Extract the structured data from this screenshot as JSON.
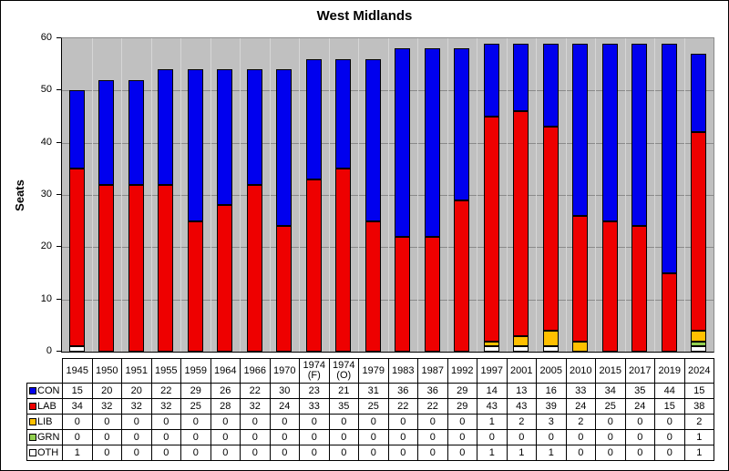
{
  "title": "West Midlands",
  "chart_data": {
    "type": "bar",
    "stacked": true,
    "title": "West Midlands",
    "xlabel": "",
    "ylabel": "Seats",
    "ylim": [
      0,
      60
    ],
    "yticks": [
      0,
      10,
      20,
      30,
      40,
      50,
      60
    ],
    "grid": true,
    "legend_position": "table-left",
    "plot_background": "#C0C0C0",
    "categories": [
      "1945",
      "1950",
      "1951",
      "1955",
      "1959",
      "1964",
      "1966",
      "1970",
      "1974 (F)",
      "1974 (O)",
      "1979",
      "1983",
      "1987",
      "1992",
      "1997",
      "2001",
      "2005",
      "2010",
      "2015",
      "2017",
      "2019",
      "2024"
    ],
    "series": [
      {
        "name": "CON",
        "color": "#0000EE",
        "values": [
          15,
          20,
          20,
          22,
          29,
          26,
          22,
          30,
          23,
          21,
          31,
          36,
          36,
          29,
          14,
          13,
          16,
          33,
          34,
          35,
          44,
          15
        ]
      },
      {
        "name": "LAB",
        "color": "#EE0000",
        "values": [
          34,
          32,
          32,
          32,
          25,
          28,
          32,
          24,
          33,
          35,
          25,
          22,
          22,
          29,
          43,
          43,
          39,
          24,
          25,
          24,
          15,
          38
        ]
      },
      {
        "name": "LIB",
        "color": "#FFC000",
        "values": [
          0,
          0,
          0,
          0,
          0,
          0,
          0,
          0,
          0,
          0,
          0,
          0,
          0,
          0,
          1,
          2,
          3,
          2,
          0,
          0,
          0,
          2
        ]
      },
      {
        "name": "GRN",
        "color": "#92D050",
        "values": [
          0,
          0,
          0,
          0,
          0,
          0,
          0,
          0,
          0,
          0,
          0,
          0,
          0,
          0,
          0,
          0,
          0,
          0,
          0,
          0,
          0,
          1
        ]
      },
      {
        "name": "OTH",
        "color": "#FFFFFF",
        "values": [
          1,
          0,
          0,
          0,
          0,
          0,
          0,
          0,
          0,
          0,
          0,
          0,
          0,
          0,
          1,
          1,
          1,
          0,
          0,
          0,
          0,
          1
        ]
      }
    ],
    "stack_order_bottom_to_top": [
      "OTH",
      "GRN",
      "LIB",
      "LAB",
      "CON"
    ]
  }
}
